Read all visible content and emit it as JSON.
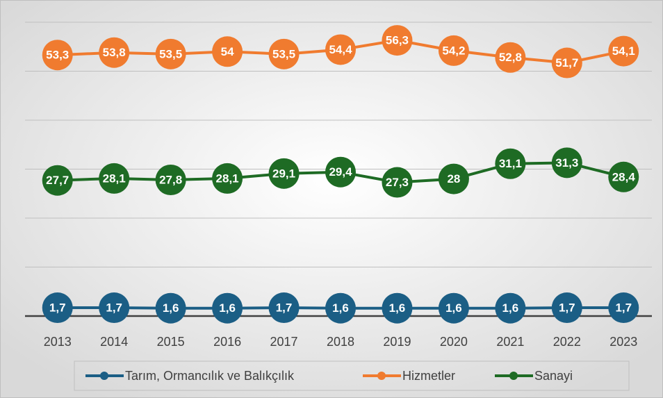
{
  "chart_data": {
    "type": "line",
    "categories": [
      "2013",
      "2014",
      "2015",
      "2016",
      "2017",
      "2018",
      "2019",
      "2020",
      "2021",
      "2022",
      "2023"
    ],
    "series": [
      {
        "name": "Tarım, Ormancılık ve Balıkçılık",
        "color": "#1b5e85",
        "values": [
          1.7,
          1.7,
          1.6,
          1.6,
          1.7,
          1.6,
          1.6,
          1.6,
          1.6,
          1.7,
          1.7
        ],
        "value_labels": [
          "1,7",
          "1,7",
          "1,6",
          "1,6",
          "1,7",
          "1,6",
          "1,6",
          "1,6",
          "1,6",
          "1,7",
          "1,7"
        ]
      },
      {
        "name": "Hizmetler",
        "color": "#f07b2f",
        "values": [
          53.3,
          53.8,
          53.5,
          54,
          53.5,
          54.4,
          56.3,
          54.2,
          52.8,
          51.7,
          54.1
        ],
        "value_labels": [
          "53,3",
          "53,8",
          "53,5",
          "54",
          "53,5",
          "54,4",
          "56,3",
          "54,2",
          "52,8",
          "51,7",
          "54,1"
        ]
      },
      {
        "name": "Sanayi",
        "color": "#1e6b24",
        "values": [
          27.7,
          28.1,
          27.8,
          28.1,
          29.1,
          29.4,
          27.3,
          28,
          31.1,
          31.3,
          28.4
        ],
        "value_labels": [
          "27,7",
          "28,1",
          "27,8",
          "28,1",
          "29,1",
          "29,4",
          "27,3",
          "28",
          "31,1",
          "31,3",
          "28,4"
        ]
      }
    ],
    "ylim": [
      0,
      60
    ],
    "yticks": [
      0,
      10,
      20,
      30,
      40,
      50,
      60
    ],
    "grid": true,
    "legend": "bottom"
  }
}
